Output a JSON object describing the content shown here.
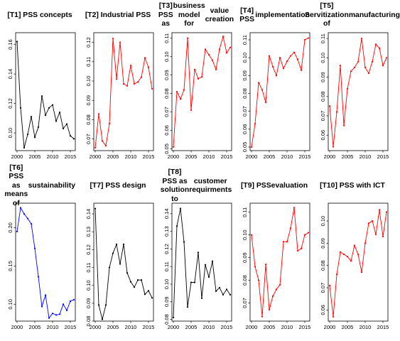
{
  "chart_data": [
    {
      "type": "line",
      "title": "[T1] PSS concepts",
      "color": "#000000",
      "x": [
        2000,
        2001,
        2002,
        2003,
        2004,
        2005,
        2006,
        2007,
        2008,
        2009,
        2010,
        2011,
        2012,
        2013,
        2014,
        2015,
        2016
      ],
      "y": [
        0.162,
        0.117,
        0.09,
        0.099,
        0.111,
        0.097,
        0.104,
        0.125,
        0.112,
        0.117,
        0.119,
        0.108,
        0.114,
        0.103,
        0.106,
        0.098,
        0.096
      ],
      "xlim": [
        2000,
        2016
      ],
      "ylim": [
        0.088,
        0.168
      ],
      "xticks": [
        2000,
        2005,
        2010,
        2015
      ],
      "yticks": [
        0.1,
        0.12,
        0.14,
        0.16
      ]
    },
    {
      "type": "line",
      "title": "[T2] Industrial PSS",
      "color": "#ff0000",
      "x": [
        2000,
        2001,
        2002,
        2003,
        2004,
        2005,
        2006,
        2007,
        2008,
        2009,
        2010,
        2011,
        2012,
        2013,
        2014,
        2015,
        2016
      ],
      "y": [
        0.0655,
        0.083,
        0.069,
        0.0665,
        0.078,
        0.122,
        0.101,
        0.12,
        0.0985,
        0.0975,
        0.108,
        0.0985,
        0.0995,
        0.102,
        0.112,
        0.107,
        0.096
      ],
      "xlim": [
        2000,
        2016
      ],
      "ylim": [
        0.064,
        0.125
      ],
      "xticks": [
        2000,
        2005,
        2010,
        2015
      ],
      "yticks": [
        0.07,
        0.08,
        0.09,
        0.1,
        0.11,
        0.12
      ]
    },
    {
      "type": "line",
      "title": "[T3] PSS as business model for value creation",
      "color": "#ff0000",
      "x": [
        2000,
        2001,
        2002,
        2003,
        2004,
        2005,
        2006,
        2007,
        2008,
        2009,
        2010,
        2011,
        2012,
        2013,
        2014,
        2015,
        2016
      ],
      "y": [
        0.051,
        0.081,
        0.077,
        0.082,
        0.11,
        0.071,
        0.093,
        0.088,
        0.089,
        0.104,
        0.101,
        0.098,
        0.093,
        0.104,
        0.111,
        0.102,
        0.105
      ],
      "xlim": [
        2000,
        2016
      ],
      "ylim": [
        0.049,
        0.113
      ],
      "xticks": [
        2000,
        2005,
        2010,
        2015
      ],
      "yticks": [
        0.05,
        0.06,
        0.07,
        0.08,
        0.09,
        0.1,
        0.11
      ]
    },
    {
      "type": "line",
      "title": "[T4] PSS implementation",
      "color": "#ff0000",
      "x": [
        2000,
        2001,
        2002,
        2003,
        2004,
        2005,
        2006,
        2007,
        2008,
        2009,
        2010,
        2011,
        2012,
        2013,
        2014,
        2015,
        2016
      ],
      "y": [
        0.05,
        0.063,
        0.086,
        0.082,
        0.075,
        0.101,
        0.095,
        0.09,
        0.1,
        0.094,
        0.098,
        0.101,
        0.103,
        0.099,
        0.093,
        0.11,
        0.111
      ],
      "xlim": [
        2000,
        2016
      ],
      "ylim": [
        0.048,
        0.114
      ],
      "xticks": [
        2000,
        2005,
        2010,
        2015
      ],
      "yticks": [
        0.05,
        0.06,
        0.07,
        0.08,
        0.09,
        0.1,
        0.11
      ]
    },
    {
      "type": "line",
      "title": "[T5] Servitization of manufacturing",
      "color": "#ff0000",
      "x": [
        2000,
        2001,
        2002,
        2003,
        2004,
        2005,
        2006,
        2007,
        2008,
        2009,
        2010,
        2011,
        2012,
        2013,
        2014,
        2015,
        2016
      ],
      "y": [
        0.075,
        0.054,
        0.072,
        0.096,
        0.065,
        0.084,
        0.093,
        0.095,
        0.098,
        0.11,
        0.095,
        0.092,
        0.098,
        0.107,
        0.105,
        0.096,
        0.1
      ],
      "xlim": [
        2000,
        2016
      ],
      "ylim": [
        0.052,
        0.113
      ],
      "xticks": [
        2000,
        2005,
        2010,
        2015
      ],
      "yticks": [
        0.06,
        0.07,
        0.08,
        0.09,
        0.1,
        0.11
      ]
    },
    {
      "type": "line",
      "title": "[T6] PSS as means of sustainability",
      "color": "#0000ff",
      "x": [
        2000,
        2001,
        2002,
        2003,
        2004,
        2005,
        2006,
        2007,
        2008,
        2009,
        2010,
        2011,
        2012,
        2013,
        2014,
        2015,
        2016
      ],
      "y": [
        0.195,
        0.226,
        0.218,
        0.212,
        0.205,
        0.173,
        0.136,
        0.097,
        0.112,
        0.082,
        0.088,
        0.086,
        0.087,
        0.1,
        0.092,
        0.104,
        0.106
      ],
      "xlim": [
        2000,
        2016
      ],
      "ylim": [
        0.078,
        0.232
      ],
      "xticks": [
        2000,
        2005,
        2010,
        2015
      ],
      "yticks": [
        0.1,
        0.15,
        0.2
      ]
    },
    {
      "type": "line",
      "title": "[T7] PSS design",
      "color": "#000000",
      "x": [
        2000,
        2001,
        2002,
        2003,
        2004,
        2005,
        2006,
        2007,
        2008,
        2009,
        2010,
        2011,
        2012,
        2013,
        2014,
        2015,
        2016
      ],
      "y": [
        0.143,
        0.089,
        0.081,
        0.089,
        0.11,
        0.118,
        0.123,
        0.112,
        0.123,
        0.107,
        0.102,
        0.099,
        0.103,
        0.103,
        0.095,
        0.097,
        0.093
      ],
      "xlim": [
        2000,
        2016
      ],
      "ylim": [
        0.08,
        0.146
      ],
      "xticks": [
        2000,
        2005,
        2010,
        2015
      ],
      "yticks": [
        0.08,
        0.09,
        0.1,
        0.11,
        0.12,
        0.13,
        0.14
      ]
    },
    {
      "type": "line",
      "title": "[T8] PSS as solution to customer requirments",
      "color": "#000000",
      "x": [
        2000,
        2001,
        2002,
        2003,
        2004,
        2005,
        2006,
        2007,
        2008,
        2009,
        2010,
        2011,
        2012,
        2013,
        2014,
        2015,
        2016
      ],
      "y": [
        0.081,
        0.133,
        0.143,
        0.124,
        0.087,
        0.101,
        0.101,
        0.118,
        0.092,
        0.111,
        0.104,
        0.113,
        0.096,
        0.098,
        0.094,
        0.097,
        0.094
      ],
      "xlim": [
        2000,
        2016
      ],
      "ylim": [
        0.079,
        0.146
      ],
      "xticks": [
        2000,
        2005,
        2010,
        2015
      ],
      "yticks": [
        0.08,
        0.09,
        0.1,
        0.11,
        0.12,
        0.13,
        0.14
      ]
    },
    {
      "type": "line",
      "title": "[T9] PSS evaluation",
      "color": "#ff0000",
      "x": [
        2000,
        2001,
        2002,
        2003,
        2004,
        2005,
        2006,
        2007,
        2008,
        2009,
        2010,
        2011,
        2012,
        2013,
        2014,
        2015,
        2016
      ],
      "y": [
        0.1,
        0.086,
        0.08,
        0.064,
        0.087,
        0.067,
        0.073,
        0.076,
        0.078,
        0.097,
        0.097,
        0.103,
        0.112,
        0.093,
        0.094,
        0.1,
        0.101
      ],
      "xlim": [
        2000,
        2016
      ],
      "ylim": [
        0.062,
        0.114
      ],
      "xticks": [
        2000,
        2005,
        2010,
        2015
      ],
      "yticks": [
        0.07,
        0.08,
        0.09,
        0.1,
        0.11
      ]
    },
    {
      "type": "line",
      "title": "[T10] PSS with ICT",
      "color": "#ff0000",
      "x": [
        2000,
        2001,
        2002,
        2003,
        2004,
        2005,
        2006,
        2007,
        2008,
        2009,
        2010,
        2011,
        2012,
        2013,
        2014,
        2015,
        2016
      ],
      "y": [
        0.071,
        0.057,
        0.076,
        0.086,
        0.085,
        0.084,
        0.082,
        0.089,
        0.085,
        0.077,
        0.09,
        0.099,
        0.1,
        0.094,
        0.105,
        0.093,
        0.104
      ],
      "xlim": [
        2000,
        2016
      ],
      "ylim": [
        0.055,
        0.108
      ],
      "xticks": [
        2000,
        2005,
        2010,
        2015
      ],
      "yticks": [
        0.06,
        0.07,
        0.08,
        0.09,
        0.1
      ]
    }
  ]
}
